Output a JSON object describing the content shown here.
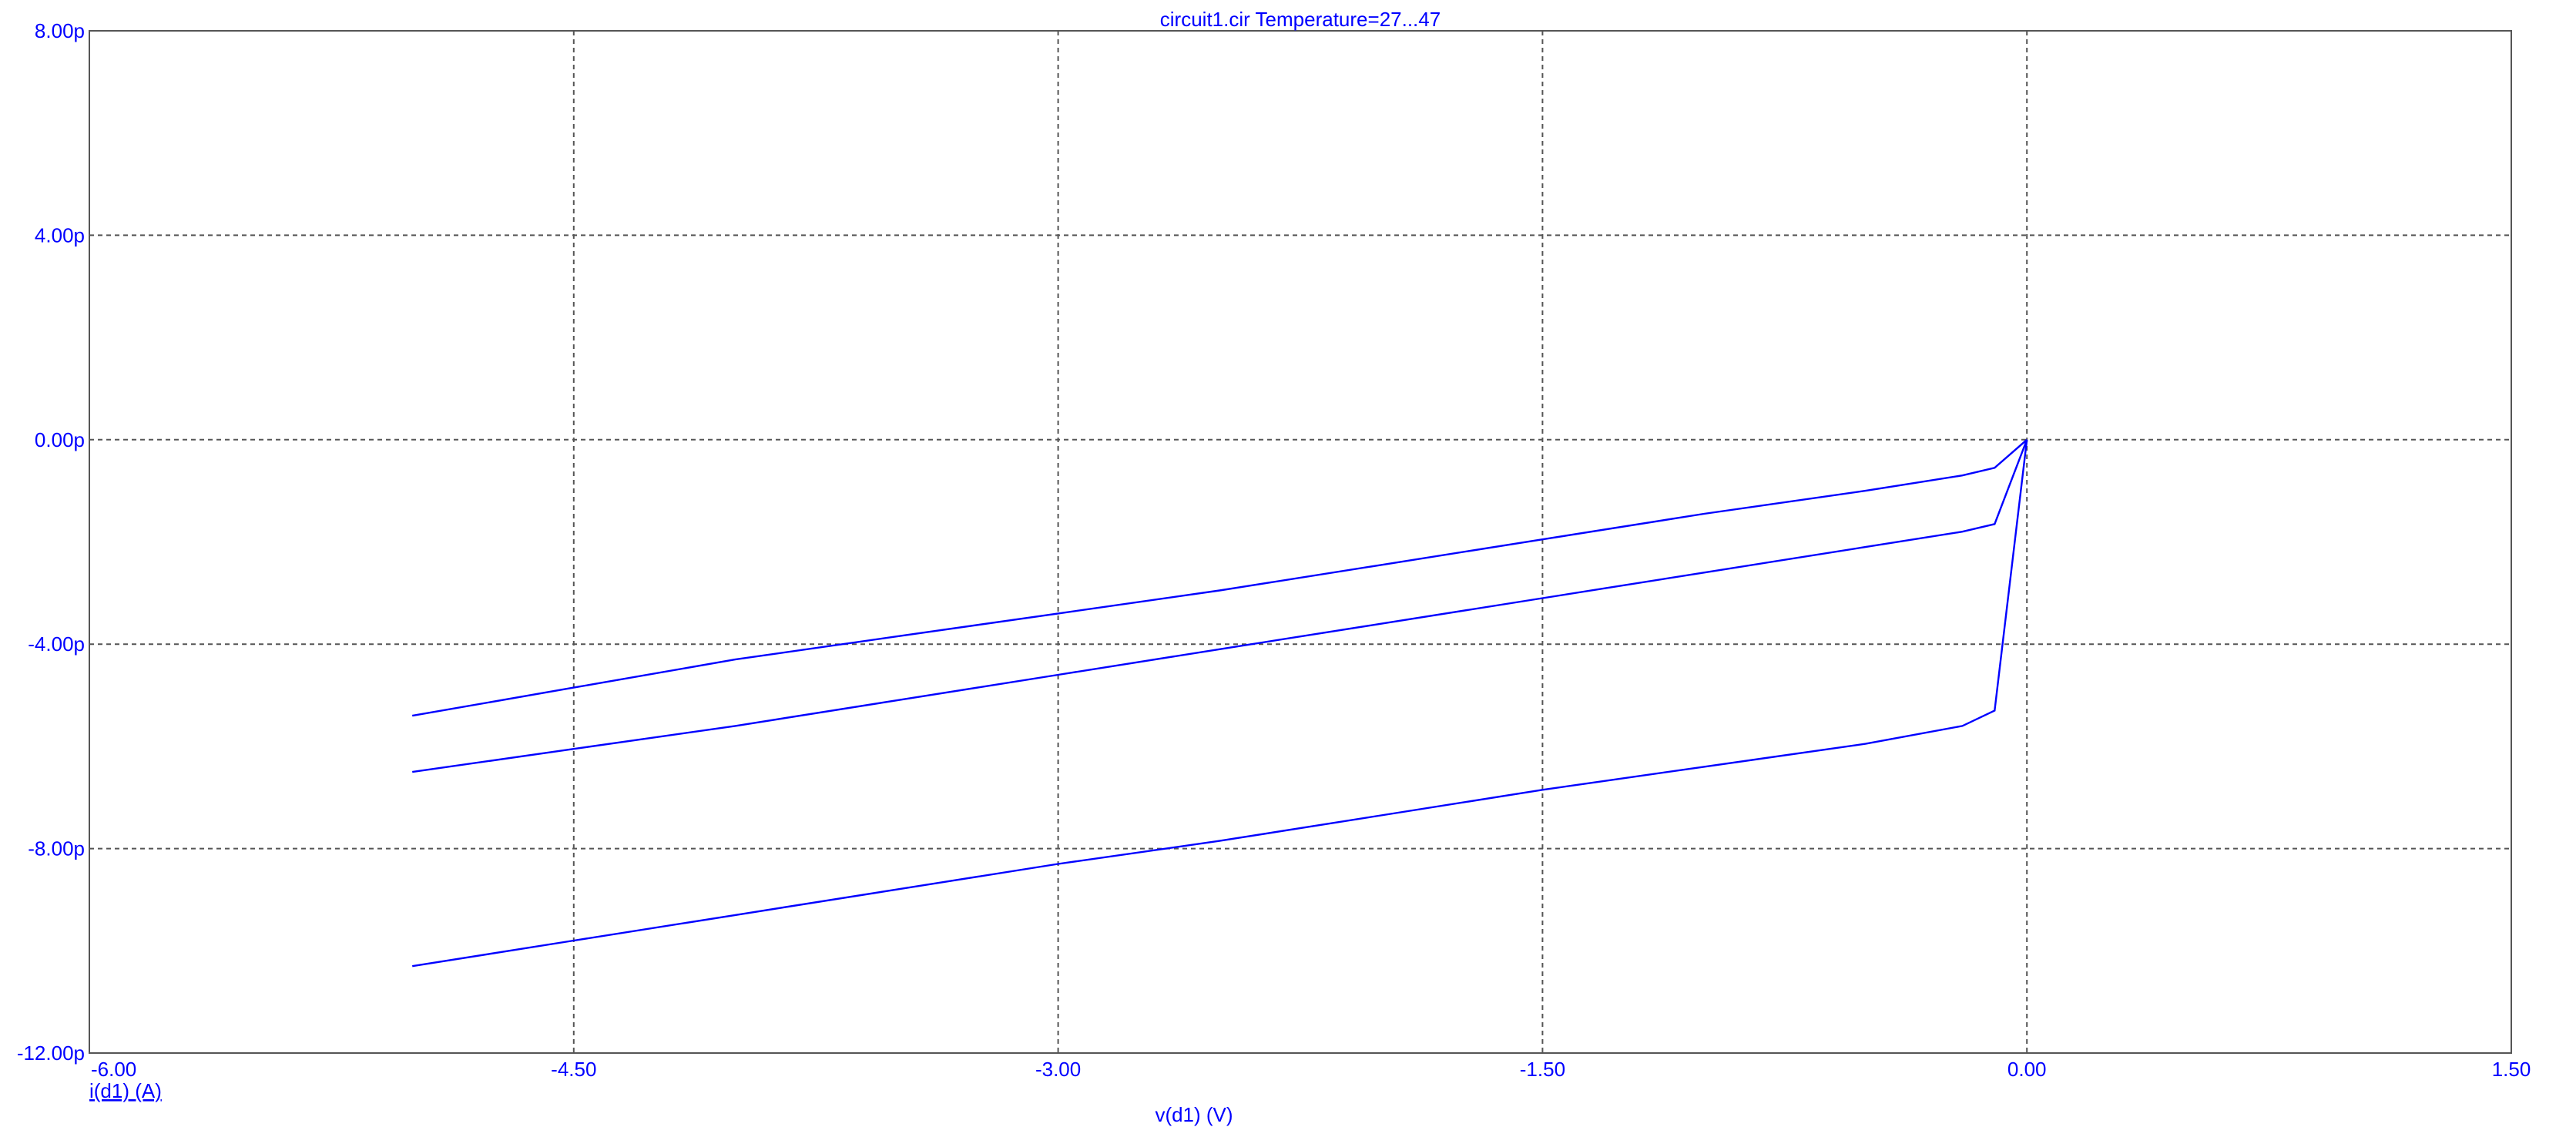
{
  "chart_data": {
    "type": "line",
    "title": "circuit1.cir Temperature=27...47",
    "xlabel": "v(d1) (V)",
    "ylabel": "i(d1) (A)",
    "xlim": [
      -6.0,
      1.5
    ],
    "ylim": [
      -12.0,
      8.0
    ],
    "x_ticks": [
      "-6.00",
      "-4.50",
      "-3.00",
      "-1.50",
      "0.00",
      "1.50"
    ],
    "x_tick_values": [
      -6.0,
      -4.5,
      -3.0,
      -1.5,
      0.0,
      1.5
    ],
    "y_ticks": [
      "8.00p",
      "4.00p",
      "0.00p",
      "-4.00p",
      "-8.00p",
      "-12.00p"
    ],
    "y_tick_values": [
      8.0,
      4.0,
      0.0,
      -4.0,
      -8.0,
      -12.0
    ],
    "y_unit_note": "values in pA",
    "grid": true,
    "line_color": "#0000ff",
    "text_color": "#0000ff",
    "series": [
      {
        "x": [
          -5.0,
          -4.5,
          -4.0,
          -3.5,
          -3.0,
          -2.5,
          -2.0,
          -1.5,
          -1.0,
          -0.5,
          -0.2,
          -0.1,
          0.0
        ],
        "values": [
          -5.4,
          -4.85,
          -4.3,
          -3.85,
          -3.4,
          -2.95,
          -2.45,
          -1.95,
          -1.45,
          -1.0,
          -0.7,
          -0.55,
          0.0
        ]
      },
      {
        "x": [
          -5.0,
          -4.5,
          -4.0,
          -3.5,
          -3.0,
          -2.5,
          -2.0,
          -1.5,
          -1.0,
          -0.5,
          -0.2,
          -0.1,
          0.0
        ],
        "values": [
          -6.5,
          -6.05,
          -5.6,
          -5.1,
          -4.6,
          -4.1,
          -3.6,
          -3.1,
          -2.6,
          -2.1,
          -1.8,
          -1.65,
          0.0
        ]
      },
      {
        "x": [
          -5.0,
          -4.5,
          -4.0,
          -3.5,
          -3.0,
          -2.5,
          -2.0,
          -1.5,
          -1.0,
          -0.5,
          -0.2,
          -0.1,
          0.0
        ],
        "values": [
          -10.3,
          -9.8,
          -9.3,
          -8.8,
          -8.3,
          -7.85,
          -7.35,
          -6.85,
          -6.4,
          -5.95,
          -5.6,
          -5.3,
          0.0
        ]
      }
    ]
  }
}
